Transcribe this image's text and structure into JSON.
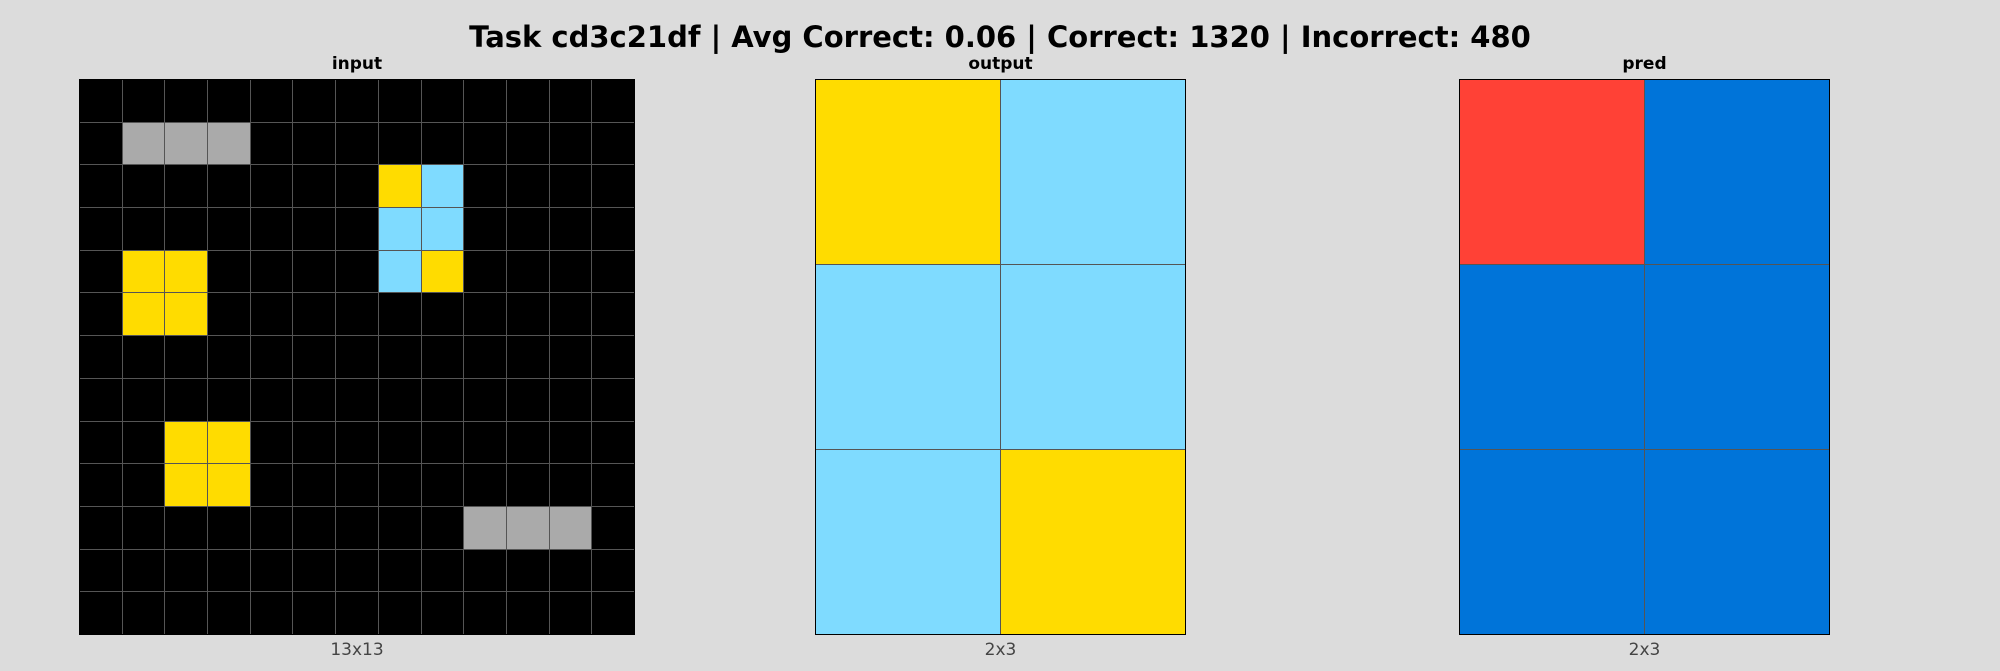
{
  "header": {
    "title": "Task cd3c21df | Avg Correct: 0.06 | Correct: 1320 | Incorrect: 480"
  },
  "palette": {
    "0": "#000000",
    "1": "#0074D9",
    "2": "#FF4136",
    "4": "#FFDC00",
    "5": "#AAAAAA",
    "8": "#7FDBFF"
  },
  "panels": [
    {
      "id": "input",
      "title": "input",
      "caption": "13x13",
      "grid": [
        [
          0,
          0,
          0,
          0,
          0,
          0,
          0,
          0,
          0,
          0,
          0,
          0,
          0
        ],
        [
          0,
          5,
          5,
          5,
          0,
          0,
          0,
          0,
          0,
          0,
          0,
          0,
          0
        ],
        [
          0,
          0,
          0,
          0,
          0,
          0,
          0,
          4,
          8,
          0,
          0,
          0,
          0
        ],
        [
          0,
          0,
          0,
          0,
          0,
          0,
          0,
          8,
          8,
          0,
          0,
          0,
          0
        ],
        [
          0,
          4,
          4,
          0,
          0,
          0,
          0,
          8,
          4,
          0,
          0,
          0,
          0
        ],
        [
          0,
          4,
          4,
          0,
          0,
          0,
          0,
          0,
          0,
          0,
          0,
          0,
          0
        ],
        [
          0,
          0,
          0,
          0,
          0,
          0,
          0,
          0,
          0,
          0,
          0,
          0,
          0
        ],
        [
          0,
          0,
          0,
          0,
          0,
          0,
          0,
          0,
          0,
          0,
          0,
          0,
          0
        ],
        [
          0,
          0,
          4,
          4,
          0,
          0,
          0,
          0,
          0,
          0,
          0,
          0,
          0
        ],
        [
          0,
          0,
          4,
          4,
          0,
          0,
          0,
          0,
          0,
          0,
          0,
          0,
          0
        ],
        [
          0,
          0,
          0,
          0,
          0,
          0,
          0,
          0,
          0,
          5,
          5,
          5,
          0
        ],
        [
          0,
          0,
          0,
          0,
          0,
          0,
          0,
          0,
          0,
          0,
          0,
          0,
          0
        ],
        [
          0,
          0,
          0,
          0,
          0,
          0,
          0,
          0,
          0,
          0,
          0,
          0,
          0
        ]
      ]
    },
    {
      "id": "output",
      "title": "output",
      "caption": "2x3",
      "grid": [
        [
          4,
          8
        ],
        [
          8,
          8
        ],
        [
          8,
          4
        ]
      ]
    },
    {
      "id": "pred",
      "title": "pred",
      "caption": "2x3",
      "grid": [
        [
          2,
          1
        ],
        [
          1,
          1
        ],
        [
          1,
          1
        ]
      ]
    }
  ]
}
